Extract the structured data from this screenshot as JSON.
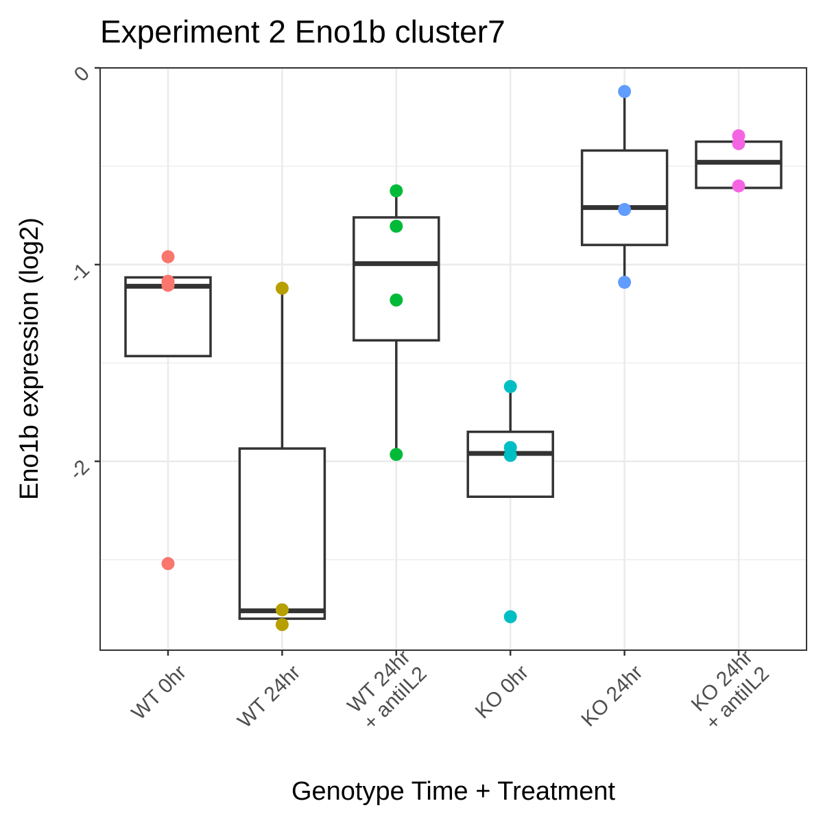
{
  "chart_data": {
    "type": "box",
    "title": "Experiment 2 Eno1b cluster7",
    "xlabel": "Genotype Time + Treatment",
    "ylabel": "Eno1b expression (log2)",
    "ylim": [
      -2.96,
      0.0
    ],
    "yticks": [
      0,
      -1,
      -2
    ],
    "ytick_labels": [
      "0",
      "-1",
      "-2"
    ],
    "grid": true,
    "categories": [
      {
        "lines": [
          "WT 0hr"
        ]
      },
      {
        "lines": [
          "WT 24hr"
        ]
      },
      {
        "lines": [
          "WT 24hr",
          "+ antiIL2"
        ]
      },
      {
        "lines": [
          "KO 0hr"
        ]
      },
      {
        "lines": [
          "KO 24hr"
        ]
      },
      {
        "lines": [
          "KO 24hr",
          "+ antiIL2"
        ]
      }
    ],
    "boxes": [
      {
        "q1": -1.465,
        "median": -1.11,
        "q3": -1.065,
        "whisker_low": -1.465,
        "whisker_high": -1.065
      },
      {
        "q1": -2.8,
        "median": -2.76,
        "q3": -1.935,
        "whisker_low": -2.8,
        "whisker_high": -1.12
      },
      {
        "q1": -1.385,
        "median": -0.995,
        "q3": -0.76,
        "whisker_low": -1.965,
        "whisker_high": -0.62
      },
      {
        "q1": -2.18,
        "median": -1.96,
        "q3": -1.85,
        "whisker_low": -2.18,
        "whisker_high": -1.62
      },
      {
        "q1": -0.9,
        "median": -0.71,
        "q3": -0.42,
        "whisker_low": -1.09,
        "whisker_high": -0.12
      },
      {
        "q1": -0.61,
        "median": -0.48,
        "q3": -0.375,
        "whisker_low": -0.61,
        "whisker_high": -0.375
      }
    ],
    "points": [
      {
        "group": 0,
        "y": -0.96
      },
      {
        "group": 0,
        "y": -1.085
      },
      {
        "group": 0,
        "y": -1.105
      },
      {
        "group": 0,
        "y": -2.52
      },
      {
        "group": 1,
        "y": -1.12
      },
      {
        "group": 1,
        "y": -2.755
      },
      {
        "group": 1,
        "y": -2.83
      },
      {
        "group": 2,
        "y": -0.625
      },
      {
        "group": 2,
        "y": -0.805
      },
      {
        "group": 2,
        "y": -1.18
      },
      {
        "group": 2,
        "y": -1.965
      },
      {
        "group": 3,
        "y": -1.62
      },
      {
        "group": 3,
        "y": -1.93
      },
      {
        "group": 3,
        "y": -1.97
      },
      {
        "group": 3,
        "y": -2.79
      },
      {
        "group": 4,
        "y": -0.12
      },
      {
        "group": 4,
        "y": -0.72
      },
      {
        "group": 4,
        "y": -1.09
      },
      {
        "group": 5,
        "y": -0.345
      },
      {
        "group": 5,
        "y": -0.385
      },
      {
        "group": 5,
        "y": -0.6
      }
    ],
    "colors": [
      "#F8766D",
      "#B79F00",
      "#00BA38",
      "#00BFC4",
      "#619CFF",
      "#F564E3"
    ],
    "box_color": "#333333",
    "grid_color": "#ebebeb",
    "panel_border_color": "#333333"
  }
}
